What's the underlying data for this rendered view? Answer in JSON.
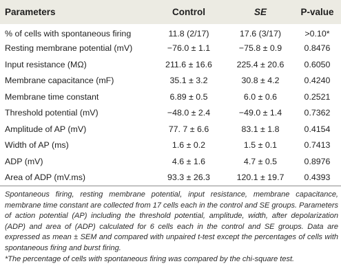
{
  "table": {
    "headers": {
      "parameters": "Parameters",
      "control": "Control",
      "se": "SE",
      "pvalue": "P-value"
    },
    "rows": [
      {
        "parameter": "% of cells with spontaneous firing",
        "control": "11.8 (2/17)",
        "se": "17.6 (3/17)",
        "p": ">0.10*"
      },
      {
        "parameter": "Resting membrane potential (mV)",
        "control": "−76.0 ± 1.1",
        "se": "−75.8 ± 0.9",
        "p": "0.8476"
      },
      {
        "parameter": "Input resistance (MΩ)",
        "control": "211.6 ± 16.6",
        "se": "225.4 ± 20.6",
        "p": "0.6050"
      },
      {
        "parameter": "Membrane capacitance (mF)",
        "control": "35.1 ± 3.2",
        "se": "30.8 ± 4.2",
        "p": "0.4240"
      },
      {
        "parameter": "Membrane time constant",
        "control": "6.89 ± 0.5",
        "se": "6.0 ± 0.6",
        "p": "0.2521"
      },
      {
        "parameter": "Threshold potential (mV)",
        "control": "−48.0 ± 2.4",
        "se": "−49.0 ± 1.4",
        "p": "0.7362"
      },
      {
        "parameter": "Amplitude of AP (mV)",
        "control": "77. 7 ± 6.6",
        "se": "83.1 ± 1.8",
        "p": "0.4154"
      },
      {
        "parameter": "Width of AP (ms)",
        "control": "1.6 ± 0.2",
        "se": "1.5 ± 0.1",
        "p": "0.7413"
      },
      {
        "parameter": "ADP (mV)",
        "control": "4.6 ± 1.6",
        "se": "4.7 ± 0.5",
        "p": "0.8976"
      },
      {
        "parameter": "Area of ADP (mV.ms)",
        "control": "93.3 ± 26.3",
        "se": "120.1 ± 19.7",
        "p": "0.4393"
      }
    ]
  },
  "notes": {
    "description": "Spontaneous firing, resting membrane potential, input resistance, membrane capacitance, membrane time constant are collected from 17 cells each in the control and SE groups. Parameters of action potential (AP) including the threshold potential, amplitude, width, after depolarization (ADP) and area of (ADP) calculated for 6 cells each in the control and SE groups. Data are expressed as mean ± SEM and compared with unpaired t-test except the percentages of cells with spontaneous firing and burst firing.",
    "footnote": "*The percentage of cells with spontaneous firing was compared by the chi-square test."
  },
  "colors": {
    "header_background": "#ecebe3",
    "rule": "#8c8c8c",
    "text": "#1e1e1e"
  }
}
